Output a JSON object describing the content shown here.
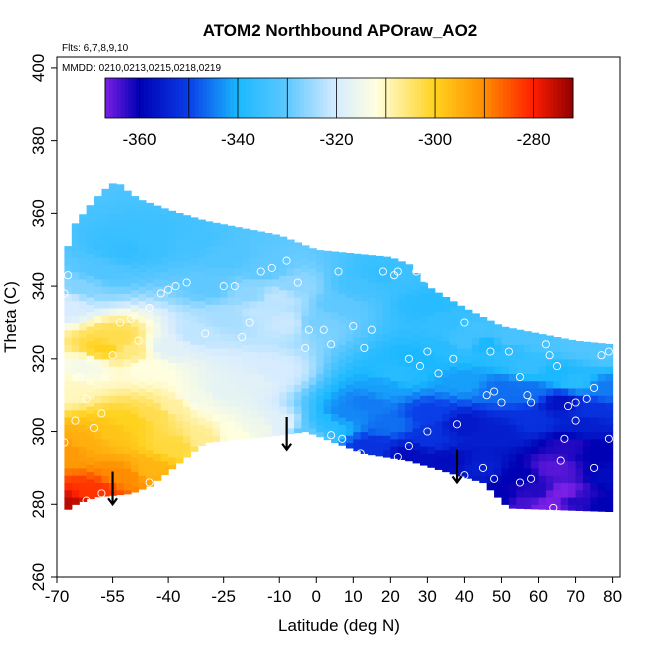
{
  "chart_data": {
    "type": "heatmap",
    "title": "ATOM2 Northbound APOraw_AO2",
    "annotations": [
      "Flts: 6,7,8,9,10",
      "MMDD: 0210,0213,0215,0218,0219"
    ],
    "xlabel": "Latitude (deg N)",
    "ylabel": "Theta (C)",
    "xlim": [
      -70,
      82
    ],
    "ylim": [
      260,
      403
    ],
    "xticks": [
      -70,
      -55,
      -40,
      -25,
      -10,
      0,
      10,
      20,
      30,
      40,
      50,
      60,
      70,
      80
    ],
    "yticks": [
      260,
      280,
      300,
      320,
      340,
      360,
      380,
      400
    ],
    "colorbar": {
      "range": [
        -367,
        -272
      ],
      "ticks": [
        -360,
        -340,
        -320,
        -300,
        -280
      ],
      "bands": [
        -367,
        -360,
        -350,
        -340,
        -330,
        -320,
        -310,
        -300,
        -290,
        -280,
        -272
      ],
      "stops": [
        {
          "v": -367,
          "color": "#7a1fe6"
        },
        {
          "v": -360,
          "color": "#0000b4"
        },
        {
          "v": -350,
          "color": "#0a3ee8"
        },
        {
          "v": -340,
          "color": "#1ab8ff"
        },
        {
          "v": -330,
          "color": "#5ec8ff"
        },
        {
          "v": -320,
          "color": "#d7ecff"
        },
        {
          "v": -312,
          "color": "#ffffe0"
        },
        {
          "v": -300,
          "color": "#ffd21e"
        },
        {
          "v": -290,
          "color": "#ff8c00"
        },
        {
          "v": -280,
          "color": "#ff1e00"
        },
        {
          "v": -272,
          "color": "#900000"
        }
      ]
    },
    "coverage_bottom": [
      [
        -68,
        278
      ],
      [
        -65,
        280
      ],
      [
        -60,
        282
      ],
      [
        -50,
        283
      ],
      [
        -45,
        285
      ],
      [
        -35,
        293
      ],
      [
        -30,
        297
      ],
      [
        -20,
        298
      ],
      [
        -10,
        299
      ],
      [
        -3,
        300
      ],
      [
        0,
        299
      ],
      [
        5,
        297
      ],
      [
        13,
        294
      ],
      [
        25,
        292
      ],
      [
        35,
        289
      ],
      [
        45,
        286
      ],
      [
        52,
        279
      ],
      [
        80,
        278
      ]
    ],
    "coverage_top": [
      [
        -68,
        346
      ],
      [
        -66,
        356
      ],
      [
        -62,
        361
      ],
      [
        -58,
        366
      ],
      [
        -54,
        369
      ],
      [
        -52,
        367
      ],
      [
        -48,
        364
      ],
      [
        -40,
        361
      ],
      [
        -30,
        358
      ],
      [
        -20,
        356
      ],
      [
        -10,
        354
      ],
      [
        0,
        350
      ],
      [
        10,
        349
      ],
      [
        20,
        348
      ],
      [
        25,
        346
      ],
      [
        30,
        340
      ],
      [
        40,
        334
      ],
      [
        50,
        329
      ],
      [
        60,
        327
      ],
      [
        70,
        325
      ],
      [
        80,
        324
      ]
    ],
    "field_points": [
      [
        -68,
        280,
        -275
      ],
      [
        -60,
        284,
        -282
      ],
      [
        -52,
        288,
        -290
      ],
      [
        -45,
        290,
        -296
      ],
      [
        -38,
        296,
        -302
      ],
      [
        -30,
        298,
        -307
      ],
      [
        -22,
        299,
        -312
      ],
      [
        -15,
        301,
        -315
      ],
      [
        -10,
        302,
        -318
      ],
      [
        -68,
        295,
        -292
      ],
      [
        -62,
        298,
        -295
      ],
      [
        -56,
        300,
        -298
      ],
      [
        -50,
        303,
        -300
      ],
      [
        -44,
        305,
        -303
      ],
      [
        -38,
        307,
        -308
      ],
      [
        -32,
        309,
        -314
      ],
      [
        -25,
        311,
        -317
      ],
      [
        -18,
        314,
        -318
      ],
      [
        -12,
        317,
        -320
      ],
      [
        -68,
        312,
        -310
      ],
      [
        -62,
        318,
        -314
      ],
      [
        -57,
        323,
        -300
      ],
      [
        -54,
        326,
        -303
      ],
      [
        -50,
        322,
        -306
      ],
      [
        -46,
        318,
        -312
      ],
      [
        -40,
        323,
        -318
      ],
      [
        -32,
        327,
        -322
      ],
      [
        -24,
        331,
        -324
      ],
      [
        -15,
        333,
        -322
      ],
      [
        -8,
        330,
        -321
      ],
      [
        -68,
        335,
        -320
      ],
      [
        -63,
        340,
        -327
      ],
      [
        -58,
        344,
        -332
      ],
      [
        -52,
        350,
        -336
      ],
      [
        -44,
        353,
        -335
      ],
      [
        -34,
        352,
        -334
      ],
      [
        -24,
        348,
        -332
      ],
      [
        -14,
        345,
        -330
      ],
      [
        -6,
        340,
        -326
      ],
      [
        -10,
        337,
        -322
      ],
      [
        -18,
        338,
        -326
      ],
      [
        -28,
        340,
        -330
      ],
      [
        -2,
        300,
        -330
      ],
      [
        3,
        302,
        -338
      ],
      [
        8,
        305,
        -344
      ],
      [
        14,
        308,
        -345
      ],
      [
        18,
        312,
        -342
      ],
      [
        22,
        316,
        -338
      ],
      [
        28,
        320,
        -340
      ],
      [
        34,
        323,
        -338
      ],
      [
        40,
        325,
        -334
      ],
      [
        46,
        324,
        -340
      ],
      [
        52,
        322,
        -337
      ],
      [
        58,
        318,
        -336
      ],
      [
        64,
        316,
        -340
      ],
      [
        70,
        314,
        -338
      ],
      [
        78,
        312,
        -345
      ],
      [
        0,
        330,
        -328
      ],
      [
        6,
        335,
        -330
      ],
      [
        12,
        340,
        -334
      ],
      [
        18,
        343,
        -336
      ],
      [
        24,
        344,
        -335
      ],
      [
        30,
        335,
        -338
      ],
      [
        36,
        330,
        -336
      ],
      [
        44,
        328,
        -334
      ],
      [
        52,
        326,
        -333
      ],
      [
        60,
        325,
        -333
      ],
      [
        70,
        324,
        -332
      ],
      [
        78,
        322,
        -332
      ],
      [
        15,
        296,
        -352
      ],
      [
        25,
        294,
        -358
      ],
      [
        35,
        292,
        -358
      ],
      [
        45,
        290,
        -355
      ],
      [
        55,
        288,
        -360
      ],
      [
        60,
        284,
        -362
      ],
      [
        64,
        290,
        -365
      ],
      [
        68,
        296,
        -362
      ],
      [
        72,
        302,
        -355
      ],
      [
        76,
        294,
        -360
      ],
      [
        80,
        288,
        -358
      ],
      [
        30,
        305,
        -350
      ],
      [
        40,
        302,
        -356
      ],
      [
        50,
        300,
        -355
      ],
      [
        58,
        303,
        -352
      ],
      [
        66,
        308,
        -357
      ],
      [
        74,
        306,
        -352
      ],
      [
        40,
        314,
        -342
      ],
      [
        50,
        312,
        -346
      ],
      [
        58,
        311,
        -346
      ],
      [
        20,
        302,
        -346
      ],
      [
        30,
        298,
        -352
      ],
      [
        62,
        279,
        -368
      ],
      [
        66,
        283,
        -368
      ],
      [
        56,
        280,
        -364
      ],
      [
        50,
        282,
        -360
      ],
      [
        70,
        281,
        -362
      ],
      [
        78,
        280,
        -360
      ]
    ],
    "observations": [
      [
        -67,
        343
      ],
      [
        -68,
        338
      ],
      [
        -64,
        315
      ],
      [
        -65,
        303
      ],
      [
        -60,
        301
      ],
      [
        -58,
        305
      ],
      [
        -55,
        321
      ],
      [
        -53,
        330
      ],
      [
        -50,
        331
      ],
      [
        -48,
        325
      ],
      [
        -45,
        334
      ],
      [
        -42,
        338
      ],
      [
        -40,
        339
      ],
      [
        -38,
        340
      ],
      [
        -35,
        341
      ],
      [
        -30,
        327
      ],
      [
        -25,
        340
      ],
      [
        -22,
        340
      ],
      [
        -20,
        326
      ],
      [
        -18,
        330
      ],
      [
        -15,
        344
      ],
      [
        -12,
        345
      ],
      [
        -8,
        347
      ],
      [
        -5,
        341
      ],
      [
        -3,
        323
      ],
      [
        -2,
        328
      ],
      [
        2,
        328
      ],
      [
        4,
        324
      ],
      [
        6,
        344
      ],
      [
        10,
        329
      ],
      [
        13,
        323
      ],
      [
        15,
        328
      ],
      [
        18,
        344
      ],
      [
        21,
        343
      ],
      [
        22,
        344
      ],
      [
        27,
        344
      ],
      [
        30,
        342
      ],
      [
        25,
        320
      ],
      [
        28,
        318
      ],
      [
        30,
        322
      ],
      [
        33,
        316
      ],
      [
        37,
        320
      ],
      [
        40,
        330
      ],
      [
        42,
        345
      ],
      [
        45,
        335
      ],
      [
        47,
        322
      ],
      [
        52,
        322
      ],
      [
        55,
        315
      ],
      [
        57,
        310
      ],
      [
        58,
        308
      ],
      [
        62,
        324
      ],
      [
        63,
        321
      ],
      [
        65,
        318
      ],
      [
        68,
        307
      ],
      [
        70,
        308
      ],
      [
        73,
        309
      ],
      [
        75,
        312
      ],
      [
        77,
        321
      ],
      [
        79,
        322
      ],
      [
        46,
        310
      ],
      [
        48,
        311
      ],
      [
        50,
        308
      ],
      [
        38,
        302
      ],
      [
        30,
        300
      ],
      [
        25,
        296
      ],
      [
        22,
        293
      ],
      [
        12,
        294
      ],
      [
        7,
        298
      ],
      [
        4,
        299
      ],
      [
        -45,
        286
      ],
      [
        -58,
        283
      ],
      [
        -62,
        281
      ],
      [
        -65,
        278
      ],
      [
        -68,
        297
      ],
      [
        -62,
        309
      ],
      [
        45,
        290
      ],
      [
        40,
        288
      ],
      [
        48,
        287
      ],
      [
        58,
        287
      ],
      [
        66,
        292
      ],
      [
        67,
        298
      ],
      [
        70,
        303
      ],
      [
        75,
        290
      ],
      [
        79,
        298
      ],
      [
        64,
        279
      ],
      [
        55,
        286
      ]
    ],
    "arrows": [
      {
        "x": -55,
        "y_from": 289,
        "y_to": 280
      },
      {
        "x": -8,
        "y_from": 304,
        "y_to": 295
      },
      {
        "x": 38,
        "y_from": 295,
        "y_to": 286
      }
    ]
  }
}
